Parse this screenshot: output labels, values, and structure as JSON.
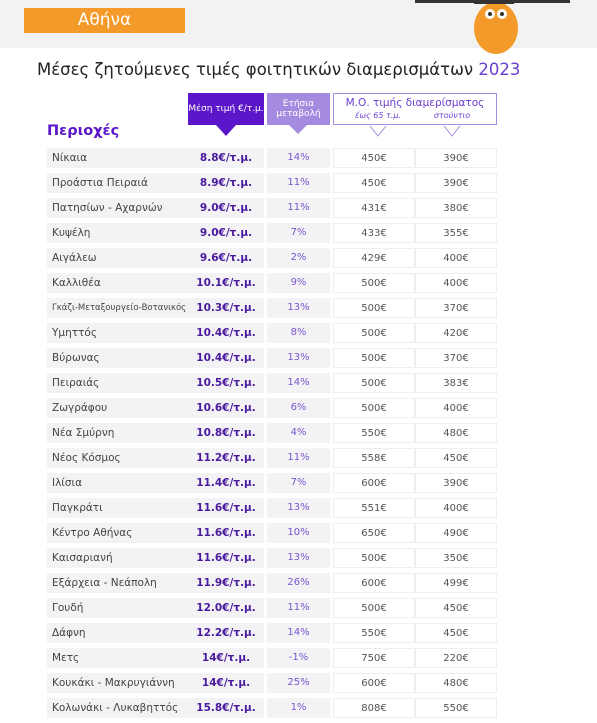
{
  "header": {
    "city": "Αθήνα",
    "title": "Μέσες ζητούμενες τιμές φοιτητικών διαμερισμάτων",
    "year": "2023"
  },
  "table": {
    "columns": {
      "area": "Περιοχές",
      "price": "Μέση τιμή €/τ.μ.",
      "change": "Ετήσια μεταβολή",
      "average": "Μ.Ο. τιμής διαμερίσματος",
      "upto65": "έως 65 τ.μ.",
      "studio": "στούντιο"
    },
    "rows": [
      [
        "Νίκαια",
        "8.8€/τ.μ.",
        "14%",
        "450€",
        "390€"
      ],
      [
        "Προάστια Πειραιά",
        "8.9€/τ.μ.",
        "11%",
        "450€",
        "390€"
      ],
      [
        "Πατησίων - Αχαρνών",
        "9.0€/τ.μ.",
        "11%",
        "431€",
        "380€"
      ],
      [
        "Κυψέλη",
        "9.0€/τ.μ.",
        "7%",
        "433€",
        "355€"
      ],
      [
        "Αιγάλεω",
        "9.6€/τ.μ.",
        "2%",
        "429€",
        "400€"
      ],
      [
        "Καλλιθέα",
        "10.1€/τ.μ.",
        "9%",
        "500€",
        "400€"
      ],
      [
        "Γκάζι-Μεταξουργείο-Βοτανικός",
        "10.3€/τ.μ.",
        "13%",
        "500€",
        "370€"
      ],
      [
        "Υμηττός",
        "10.4€/τ.μ.",
        "8%",
        "500€",
        "420€"
      ],
      [
        "Βύρωνας",
        "10.4€/τ.μ.",
        "13%",
        "500€",
        "370€"
      ],
      [
        "Πειραιάς",
        "10.5€/τ.μ.",
        "14%",
        "500€",
        "383€"
      ],
      [
        "Ζωγράφου",
        "10.6€/τ.μ.",
        "6%",
        "500€",
        "400€"
      ],
      [
        "Νέα Σμύρνη",
        "10.8€/τ.μ.",
        "4%",
        "550€",
        "480€"
      ],
      [
        "Νέος Κόσμος",
        "11.2€/τ.μ.",
        "11%",
        "558€",
        "450€"
      ],
      [
        "Ιλίσια",
        "11.4€/τ.μ.",
        "7%",
        "600€",
        "390€"
      ],
      [
        "Παγκράτι",
        "11.6€/τ.μ.",
        "13%",
        "551€",
        "400€"
      ],
      [
        "Κέντρο Αθήνας",
        "11.6€/τ.μ.",
        "10%",
        "650€",
        "490€"
      ],
      [
        "Καισαριανή",
        "11.6€/τ.μ.",
        "13%",
        "500€",
        "350€"
      ],
      [
        "Εξάρχεια - Νεάπολη",
        "11.9€/τ.μ.",
        "26%",
        "600€",
        "499€"
      ],
      [
        "Γουδή",
        "12.0€/τ.μ.",
        "11%",
        "500€",
        "450€"
      ],
      [
        "Δάφνη",
        "12.2€/τ.μ.",
        "14%",
        "550€",
        "450€"
      ],
      [
        "Μετς",
        "14€/τ.μ.",
        "-1%",
        "750€",
        "220€"
      ],
      [
        "Κουκάκι - Μακρυγιάννη",
        "14€/τ.μ.",
        "25%",
        "600€",
        "480€"
      ],
      [
        "Κολωνάκι - Λυκαβηττός",
        "15.8€/τ.μ.",
        "1%",
        "808€",
        "550€"
      ]
    ]
  }
}
